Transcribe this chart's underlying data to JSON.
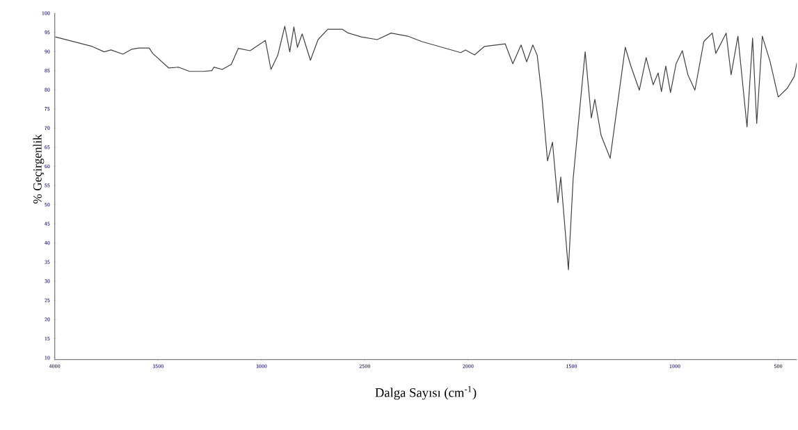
{
  "chart_data": {
    "type": "line",
    "xlabel": "Dalga Sayısı (cm$^{-1}$)",
    "ylabel": "% Geçirgenlik",
    "xlim": [
      4000,
      410
    ],
    "ylim": [
      9.5,
      100
    ],
    "xticks": [
      4000,
      3500,
      3000,
      2500,
      2000,
      1500,
      1000,
      500
    ],
    "yticks": [
      10,
      15,
      20,
      25,
      30,
      35,
      40,
      45,
      50,
      55,
      60,
      65,
      70,
      75,
      80,
      85,
      90,
      95,
      100
    ],
    "marker": "none",
    "line_style": "solid",
    "series": [
      {
        "color": "#404040",
        "x": [
          3997,
          3818,
          3761,
          3728,
          3670,
          3627,
          3593,
          3543,
          3526,
          3449,
          3401,
          3348,
          3280,
          3240,
          3230,
          3190,
          3146,
          3112,
          3055,
          3005,
          2981,
          2954,
          2921,
          2887,
          2863,
          2843,
          2826,
          2803,
          2763,
          2726,
          2679,
          2608,
          2584,
          2517,
          2440,
          2373,
          2292,
          2225,
          2036,
          2013,
          1969,
          1922,
          1821,
          1784,
          1744,
          1717,
          1687,
          1666,
          1643,
          1616,
          1592,
          1566,
          1552,
          1515,
          1492,
          1434,
          1404,
          1387,
          1357,
          1313,
          1240,
          1213,
          1172,
          1139,
          1105,
          1081,
          1065,
          1044,
          1021,
          994,
          964,
          937,
          903,
          860,
          819,
          802,
          752,
          728,
          695,
          651,
          624,
          604,
          577,
          540,
          500,
          456,
          422,
          410
        ],
        "values": [
          93.8,
          91.3,
          89.9,
          90.4,
          89.3,
          90.6,
          90.9,
          90.9,
          89.5,
          85.7,
          85.9,
          84.8,
          84.8,
          85,
          85.9,
          85.3,
          86.6,
          90.8,
          90.2,
          92,
          92.9,
          85.3,
          89,
          96.6,
          89.9,
          96.4,
          91.1,
          94.6,
          87.7,
          93.1,
          95.8,
          95.8,
          94.9,
          93.8,
          93.1,
          94.8,
          94,
          92.6,
          89.7,
          90.4,
          89.1,
          91.3,
          92,
          86.8,
          91.7,
          87.3,
          91.7,
          89,
          78.1,
          61.4,
          66.3,
          50.5,
          57.2,
          33,
          56.8,
          89.9,
          72.6,
          77.5,
          68.1,
          62.1,
          91.1,
          86.2,
          79.9,
          88.4,
          81.3,
          84.4,
          79.5,
          86.2,
          79.3,
          86.8,
          90.2,
          83.9,
          79.9,
          92.6,
          94.8,
          89.5,
          94.8,
          83.9,
          94,
          70.3,
          93.5,
          71.2,
          94,
          87.5,
          78.1,
          80.4,
          83.5,
          87
        ]
      }
    ]
  }
}
